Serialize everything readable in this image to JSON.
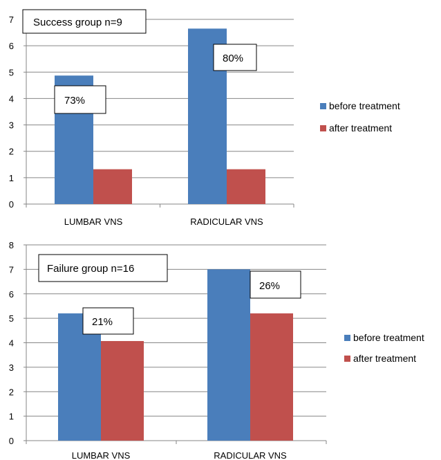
{
  "colors": {
    "before": "#4a7ebb",
    "after": "#c0504d",
    "grid": "#868686",
    "axis": "#868686"
  },
  "chart_data": [
    {
      "type": "bar",
      "title": "",
      "categories": [
        "LUMBAR VNS",
        "RADICULAR VNS"
      ],
      "series": [
        {
          "name": "before treatment",
          "values": [
            4.87,
            6.65
          ]
        },
        {
          "name": "after treatment",
          "values": [
            1.32,
            1.32
          ]
        }
      ],
      "ylim": [
        0,
        7
      ],
      "yticks": [
        0,
        1,
        2,
        3,
        4,
        5,
        6,
        7
      ],
      "grid": true,
      "legend_position": "right",
      "annotations": [
        "Success group n=9",
        "73%",
        "80%"
      ]
    },
    {
      "type": "bar",
      "title": "",
      "categories": [
        "LUMBAR VNS",
        "RADICULAR VNS"
      ],
      "series": [
        {
          "name": "before treatment",
          "values": [
            5.2,
            7.0
          ]
        },
        {
          "name": "after treatment",
          "values": [
            4.07,
            5.2
          ]
        }
      ],
      "ylim": [
        0,
        8
      ],
      "yticks": [
        0,
        1,
        2,
        3,
        4,
        5,
        6,
        7,
        8
      ],
      "grid": true,
      "legend_position": "right",
      "annotations": [
        "Failure group n=16",
        "21%",
        "26%"
      ]
    }
  ]
}
